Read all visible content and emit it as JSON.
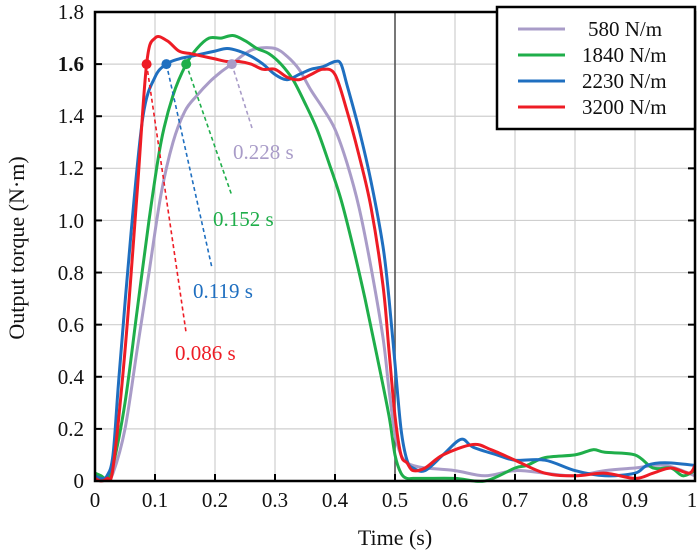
{
  "chart_data": {
    "type": "line",
    "title": "",
    "xlabel": "Time (s)",
    "ylabel": "Output torque (N·m)",
    "xlim": [
      0,
      1
    ],
    "ylim": [
      0,
      1.8
    ],
    "xticks": [
      "0",
      "0.1",
      "0.2",
      "0.3",
      "0.4",
      "0.5",
      "0.6",
      "0.7",
      "0.8",
      "0.9",
      "1"
    ],
    "xtick_values": [
      0,
      0.1,
      0.2,
      0.3,
      0.4,
      0.5,
      0.6,
      0.7,
      0.8,
      0.9,
      1
    ],
    "yticks": [
      "0",
      "0.2",
      "0.4",
      "0.6",
      "0.8",
      "1.0",
      "1.2",
      "1.4",
      "1.6",
      "1.8"
    ],
    "ytick_values": [
      0,
      0.2,
      0.4,
      0.6,
      0.8,
      1.0,
      1.2,
      1.4,
      1.6,
      1.8
    ],
    "highlight_ytick": {
      "label": "1.6",
      "color": "#f0a050"
    },
    "grid": true,
    "legend_position": "top-right",
    "vertical_line_x": 0.5,
    "threshold_y": 1.6,
    "series": [
      {
        "name": "580 N/m",
        "color": "#a99cc8",
        "x": [
          0,
          0.01,
          0.02,
          0.03,
          0.05,
          0.07,
          0.09,
          0.11,
          0.13,
          0.15,
          0.17,
          0.19,
          0.21,
          0.228,
          0.25,
          0.27,
          0.3,
          0.32,
          0.34,
          0.36,
          0.38,
          0.4,
          0.42,
          0.44,
          0.46,
          0.48,
          0.49,
          0.5,
          0.51,
          0.52,
          0.53,
          0.55,
          0.6,
          0.65,
          0.7,
          0.75,
          0.8,
          0.85,
          0.9,
          0.95,
          1.0
        ],
        "y": [
          0.02,
          0.01,
          0.01,
          0.03,
          0.2,
          0.5,
          0.8,
          1.1,
          1.3,
          1.42,
          1.48,
          1.53,
          1.57,
          1.6,
          1.64,
          1.66,
          1.66,
          1.63,
          1.58,
          1.5,
          1.43,
          1.35,
          1.22,
          1.05,
          0.82,
          0.55,
          0.35,
          0.18,
          0.1,
          0.07,
          0.06,
          0.05,
          0.04,
          0.02,
          0.04,
          0.03,
          0.02,
          0.04,
          0.05,
          0.06,
          0.02
        ]
      },
      {
        "name": "1840 N/m",
        "color": "#1fae4a",
        "x": [
          0,
          0.01,
          0.02,
          0.03,
          0.05,
          0.07,
          0.09,
          0.11,
          0.13,
          0.152,
          0.17,
          0.19,
          0.21,
          0.23,
          0.25,
          0.27,
          0.29,
          0.31,
          0.33,
          0.35,
          0.37,
          0.39,
          0.41,
          0.43,
          0.45,
          0.47,
          0.49,
          0.5,
          0.51,
          0.52,
          0.53,
          0.55,
          0.6,
          0.65,
          0.7,
          0.72,
          0.75,
          0.8,
          0.83,
          0.85,
          0.9,
          0.93,
          0.96,
          0.98,
          1.0
        ],
        "y": [
          0.03,
          0.02,
          0.01,
          0.06,
          0.3,
          0.65,
          1.0,
          1.3,
          1.48,
          1.6,
          1.66,
          1.7,
          1.7,
          1.71,
          1.69,
          1.66,
          1.64,
          1.6,
          1.54,
          1.45,
          1.35,
          1.22,
          1.08,
          0.9,
          0.7,
          0.48,
          0.25,
          0.1,
          0.03,
          0.01,
          0.01,
          0.01,
          0.01,
          0.0,
          0.05,
          0.06,
          0.09,
          0.1,
          0.12,
          0.11,
          0.1,
          0.05,
          0.05,
          0.02,
          0.04
        ]
      },
      {
        "name": "2230 N/m",
        "color": "#1f6fc0",
        "x": [
          0,
          0.01,
          0.02,
          0.03,
          0.04,
          0.06,
          0.08,
          0.1,
          0.119,
          0.14,
          0.16,
          0.18,
          0.2,
          0.22,
          0.24,
          0.26,
          0.28,
          0.3,
          0.32,
          0.34,
          0.36,
          0.38,
          0.4,
          0.41,
          0.42,
          0.44,
          0.46,
          0.48,
          0.49,
          0.5,
          0.51,
          0.52,
          0.53,
          0.55,
          0.58,
          0.61,
          0.63,
          0.67,
          0.7,
          0.75,
          0.8,
          0.85,
          0.9,
          0.92,
          0.95,
          1.0
        ],
        "y": [
          0.02,
          0.01,
          0.02,
          0.1,
          0.4,
          0.95,
          1.4,
          1.55,
          1.6,
          1.62,
          1.63,
          1.64,
          1.65,
          1.66,
          1.65,
          1.63,
          1.6,
          1.56,
          1.54,
          1.56,
          1.58,
          1.59,
          1.61,
          1.6,
          1.52,
          1.35,
          1.15,
          0.9,
          0.7,
          0.45,
          0.2,
          0.08,
          0.05,
          0.04,
          0.1,
          0.16,
          0.13,
          0.1,
          0.08,
          0.08,
          0.04,
          0.02,
          0.03,
          0.06,
          0.07,
          0.06
        ]
      },
      {
        "name": "3200 N/m",
        "color": "#ee1c25",
        "x": [
          0,
          0.01,
          0.02,
          0.03,
          0.05,
          0.07,
          0.086,
          0.1,
          0.12,
          0.14,
          0.16,
          0.18,
          0.2,
          0.22,
          0.24,
          0.26,
          0.28,
          0.3,
          0.32,
          0.34,
          0.36,
          0.38,
          0.4,
          0.42,
          0.44,
          0.46,
          0.48,
          0.49,
          0.5,
          0.51,
          0.52,
          0.53,
          0.55,
          0.58,
          0.63,
          0.66,
          0.7,
          0.75,
          0.8,
          0.85,
          0.9,
          0.93,
          0.96,
          0.99,
          1.0
        ],
        "y": [
          0.01,
          0.0,
          0.01,
          0.05,
          0.5,
          1.1,
          1.6,
          1.7,
          1.69,
          1.65,
          1.64,
          1.63,
          1.62,
          1.61,
          1.61,
          1.6,
          1.58,
          1.58,
          1.55,
          1.54,
          1.56,
          1.58,
          1.56,
          1.42,
          1.25,
          1.05,
          0.75,
          0.5,
          0.25,
          0.1,
          0.07,
          0.04,
          0.05,
          0.1,
          0.14,
          0.12,
          0.08,
          0.03,
          0.02,
          0.03,
          0.01,
          0.03,
          0.05,
          0.03,
          0.06
        ]
      }
    ],
    "annotations": [
      {
        "label": "0.228 s",
        "x": 0.228,
        "y": 1.6,
        "color": "#a99cc8"
      },
      {
        "label": "0.152 s",
        "x": 0.152,
        "y": 1.6,
        "color": "#1fae4a"
      },
      {
        "label": "0.119 s",
        "x": 0.119,
        "y": 1.6,
        "color": "#1f6fc0"
      },
      {
        "label": "0.086 s",
        "x": 0.086,
        "y": 1.6,
        "color": "#ee1c25"
      }
    ]
  }
}
